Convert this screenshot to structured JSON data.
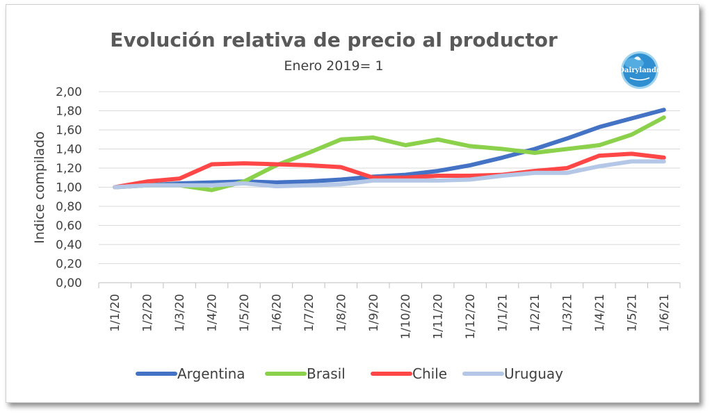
{
  "chart_data": {
    "type": "line",
    "title": "Evolución relativa de precio al productor",
    "subtitle": "Enero 2019= 1",
    "xlabel": "",
    "ylabel": "Indice compilado",
    "ylim": [
      0,
      2
    ],
    "yticks": [
      "0,00",
      "0,20",
      "0,40",
      "0,60",
      "0,80",
      "1,00",
      "1,20",
      "1,40",
      "1,60",
      "1,80",
      "2,00"
    ],
    "categories": [
      "1/1/20",
      "1/2/20",
      "1/3/20",
      "1/4/20",
      "1/5/20",
      "1/6/20",
      "1/7/20",
      "1/8/20",
      "1/9/20",
      "1/10/20",
      "1/11/20",
      "1/12/20",
      "1/1/21",
      "1/2/21",
      "1/3/21",
      "1/4/21",
      "1/5/21",
      "1/6/21"
    ],
    "grid": true,
    "legend_position": "bottom",
    "series": [
      {
        "name": "Argentina",
        "color": "#4472C4",
        "values": [
          1.0,
          1.02,
          1.04,
          1.05,
          1.06,
          1.05,
          1.06,
          1.08,
          1.11,
          1.13,
          1.17,
          1.23,
          1.31,
          1.4,
          1.51,
          1.63,
          1.72,
          1.81
        ]
      },
      {
        "name": "Brasil",
        "color": "#8BD14C",
        "values": [
          1.0,
          1.02,
          1.02,
          0.97,
          1.06,
          1.23,
          1.36,
          1.5,
          1.52,
          1.44,
          1.5,
          1.43,
          1.4,
          1.36,
          1.4,
          1.44,
          1.55,
          1.73
        ]
      },
      {
        "name": "Chile",
        "color": "#FF4747",
        "values": [
          1.0,
          1.06,
          1.09,
          1.24,
          1.25,
          1.24,
          1.23,
          1.21,
          1.1,
          1.1,
          1.12,
          1.12,
          1.13,
          1.17,
          1.2,
          1.33,
          1.35,
          1.31
        ]
      },
      {
        "name": "Uruguay",
        "color": "#B4C7E7",
        "values": [
          1.0,
          1.02,
          1.02,
          1.02,
          1.04,
          1.01,
          1.02,
          1.03,
          1.07,
          1.07,
          1.07,
          1.08,
          1.12,
          1.15,
          1.15,
          1.22,
          1.27,
          1.27
        ]
      }
    ]
  },
  "logo": {
    "name": "dairylando-logo-icon",
    "text": "Dairylando"
  }
}
